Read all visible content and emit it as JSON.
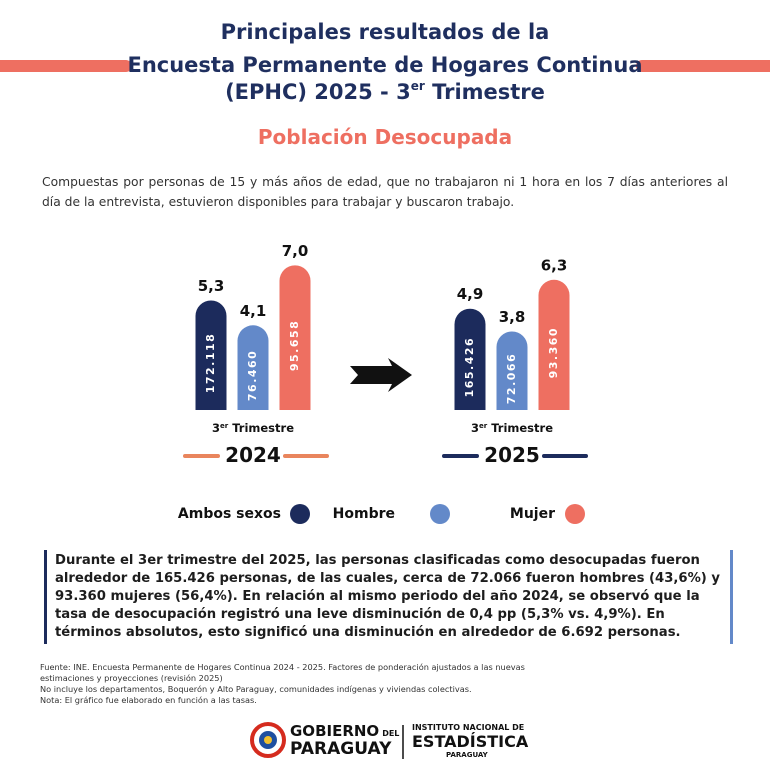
{
  "header": {
    "line1": "Principales resultados de la",
    "line2": "Encuesta Permanente de Hogares Continua",
    "line3": {
      "main": "(EPHC) 2025 - 3",
      "sup": "er",
      "rest": " Trimestre"
    },
    "subtitle": "Población Desocupada",
    "intro": "Compuestas por personas de 15 y más años de edad, que no trabajaron ni 1 hora en los 7 días anteriores al día de la entrevista, estuvieron disponibles para trabajar y buscaron trabajo."
  },
  "chart_data": [
    {
      "type": "bar",
      "subtitle": {
        "main": "3",
        "sup": "er",
        "rest": " Trimestre"
      },
      "xlabel": "2024",
      "line_color": "#e9855d",
      "values": [
        5.3,
        4.1,
        7.0
      ],
      "value_labels": [
        "5,3",
        "4,1",
        "7,0"
      ],
      "inner_labels": [
        "172.118",
        "76.460",
        "95.658"
      ],
      "colors": [
        "#1c2b5c",
        "#6389c9",
        "#ee6f61"
      ],
      "ylim": [
        0,
        7.5
      ]
    },
    {
      "type": "bar",
      "subtitle": {
        "main": "3",
        "sup": "er",
        "rest": " Trimestre"
      },
      "xlabel": "2025",
      "line_color": "#1c2b5c",
      "values": [
        4.9,
        3.8,
        6.3
      ],
      "value_labels": [
        "4,9",
        "3,8",
        "6,3"
      ],
      "inner_labels": [
        "165.426",
        "72.066",
        "93.360"
      ],
      "colors": [
        "#1c2b5c",
        "#6389c9",
        "#ee6f61"
      ],
      "ylim": [
        0,
        7.5
      ]
    }
  ],
  "legend": [
    {
      "name": "Ambos sexos",
      "color": "#1c2b5c"
    },
    {
      "name": "Hombre",
      "color": "#6389c9"
    },
    {
      "name": "Mujer",
      "color": "#ee6f61"
    }
  ],
  "summary": "Durante el 3er trimestre del 2025, las personas clasificadas como desocupadas fueron alrededor de 165.426 personas, de las cuales, cerca de 72.066 fueron hombres (43,6%) y 93.360 mujeres (56,4%). En relación al mismo periodo del año 2024, se observó que la tasa de desocupación registró una leve disminución de 0,4 pp (5,3% vs. 4,9%). En términos absolutos, esto significó una disminución en alrededor de 6.692 personas.",
  "footnotes": [
    "Fuente: INE. Encuesta Permanente de Hogares Continua 2024 - 2025.  Factores de ponderación ajustados a las nuevas estimaciones y proyecciones (revisión 2025)",
    "No incluye los departamentos, Boquerón y Alto Paraguay, comunidades indígenas y viviendas colectivas.",
    "Nota: El gráfico fue elaborado en función a las tasas."
  ],
  "logos": {
    "gov_line1": "GOBIERNO",
    "gov_del": "DEL",
    "gov_line2": "PARAGUAY",
    "ine_line1": "INSTITUTO NACIONAL DE",
    "ine_line2": "ESTADÍSTICA",
    "ine_line3": "PARAGUAY"
  }
}
